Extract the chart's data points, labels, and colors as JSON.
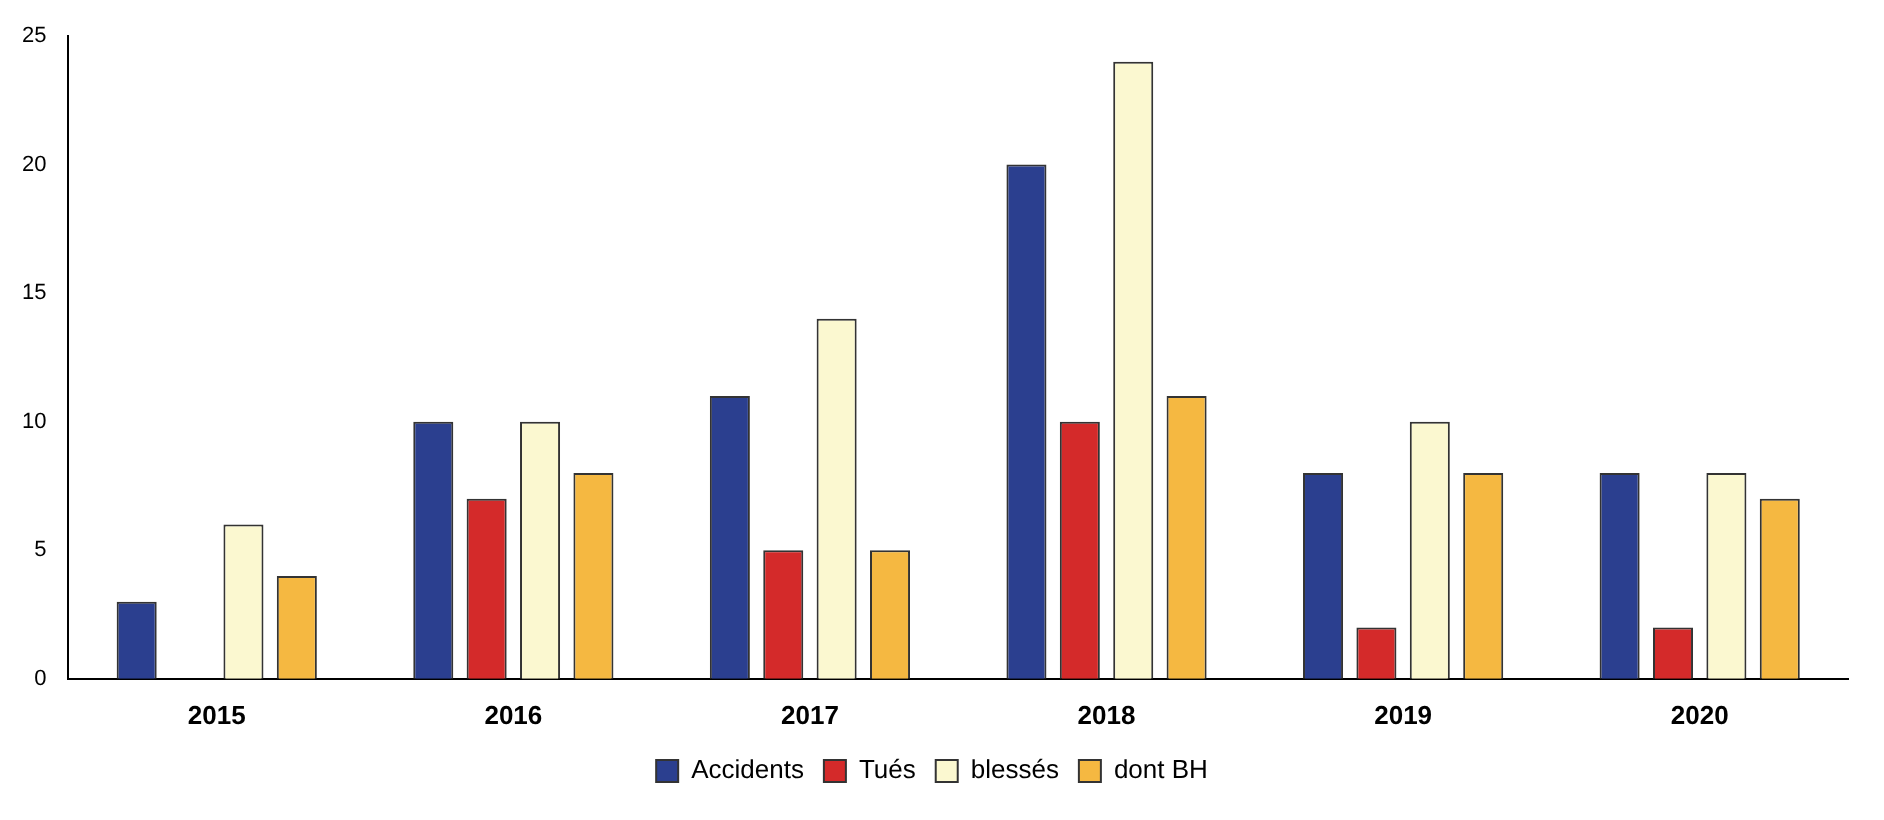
{
  "chart_data": {
    "type": "bar",
    "categories": [
      "2015",
      "2016",
      "2017",
      "2018",
      "2019",
      "2020"
    ],
    "series": [
      {
        "name": "Accidents",
        "color": "#2b3f8f",
        "values": [
          3,
          10,
          11,
          20,
          8,
          8
        ]
      },
      {
        "name": "Tués",
        "color": "#d42a2a",
        "values": [
          0,
          7,
          5,
          10,
          2,
          2
        ]
      },
      {
        "name": "blessés",
        "color": "#fbf8d0",
        "values": [
          6,
          10,
          14,
          24,
          10,
          8
        ]
      },
      {
        "name": "dont BH",
        "color": "#f5b841",
        "values": [
          4,
          8,
          5,
          11,
          8,
          7
        ]
      }
    ],
    "ylim": [
      0,
      25
    ],
    "yticks": [
      0,
      5,
      10,
      15,
      20,
      25
    ],
    "grid": false,
    "legend": "bottom"
  }
}
